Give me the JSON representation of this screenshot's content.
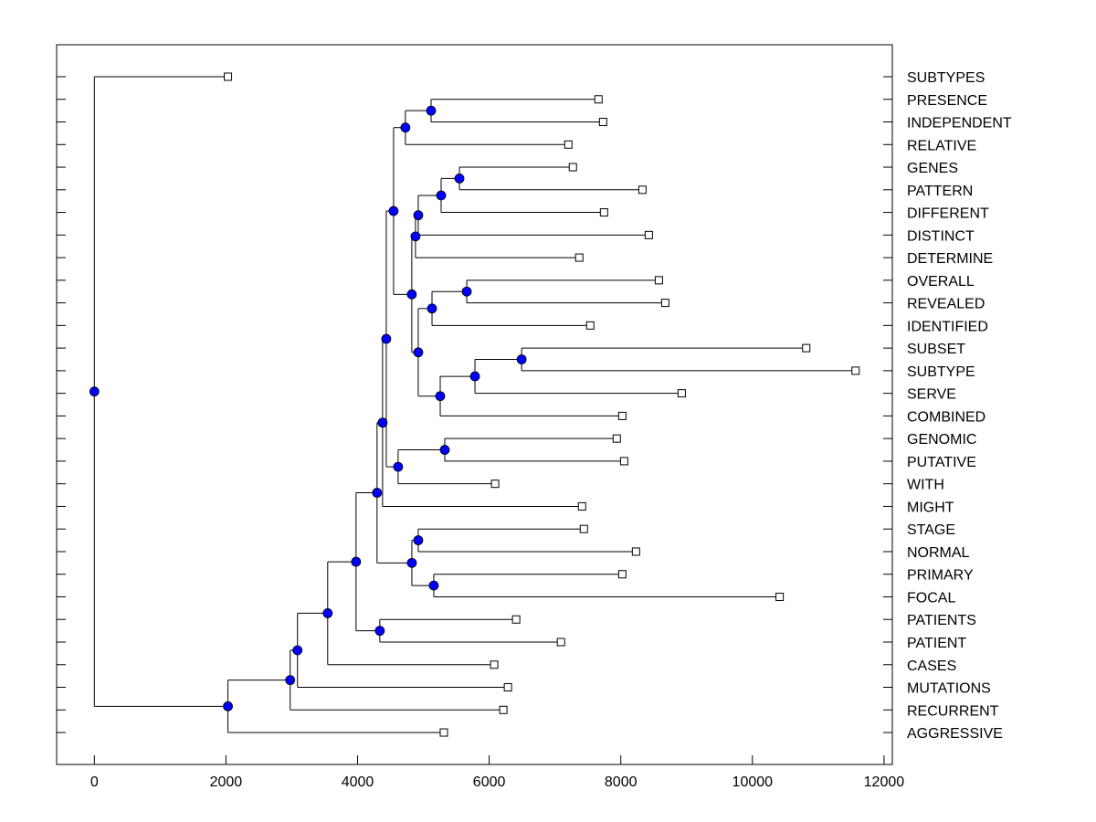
{
  "chart_data": {
    "type": "dendrogram",
    "title": "",
    "xlabel": "",
    "ylabel": "",
    "xlim": [
      -600,
      12100
    ],
    "xticks": [
      0,
      2000,
      4000,
      6000,
      8000,
      10000,
      12000
    ],
    "grid": false,
    "colors": {
      "internal_node": "#0000ff",
      "leaf_node": "#ffffff",
      "line": "#000000"
    },
    "leaf_order": [
      "SUBTYPES",
      "PRESENCE",
      "INDEPENDENT",
      "RELATIVE",
      "GENES",
      "PATTERN",
      "DIFFERENT",
      "DISTINCT",
      "DETERMINE",
      "OVERALL",
      "REVEALED",
      "IDENTIFIED",
      "SUBSET",
      "SUBTYPE",
      "SERVE",
      "COMBINED",
      "GENOMIC",
      "PUTATIVE",
      "WITH",
      "MIGHT",
      "STAGE",
      "NORMAL",
      "PRIMARY",
      "FOCAL",
      "PATIENTS",
      "PATIENT",
      "CASES",
      "MUTATIONS",
      "RECURRENT",
      "AGGRESSIVE"
    ],
    "tree": {
      "h": 0,
      "c": [
        {
          "label": "SUBTYPES",
          "h": 2030
        },
        {
          "h": 2030,
          "c": [
            {
              "h": 2976,
              "c": [
                {
                  "h": 3087,
                  "c": [
                    {
                      "h": 3546,
                      "c": [
                        {
                          "h": 3977,
                          "c": [
                            {
                              "h": 4296,
                              "c": [
                                {
                                  "h": 4380,
                                  "c": [
                                    {
                                      "h": 4436,
                                      "c": [
                                        {
                                          "h": 4547,
                                          "c": [
                                            {
                                              "h": 4727,
                                              "c": [
                                                {
                                                  "h": 5117,
                                                  "c": [
                                                    {
                                                      "label": "PRESENCE",
                                                      "h": 7661
                                                    },
                                                    {
                                                      "label": "INDEPENDENT",
                                                      "h": 7731
                                                    }
                                                  ]
                                                },
                                                {
                                                  "label": "RELATIVE",
                                                  "h": 7203
                                                }
                                              ]
                                            },
                                            {
                                              "h": 4824,
                                              "c": [
                                                {
                                                  "h": 4880,
                                                  "c": [
                                                    {
                                                      "h": 4922,
                                                      "c": [
                                                        {
                                                          "h": 5270,
                                                          "c": [
                                                            {
                                                              "h": 5548,
                                                              "c": [
                                                                {
                                                                  "label": "GENES",
                                                                  "h": 7272
                                                                },
                                                                {
                                                                  "label": "PATTERN",
                                                                  "h": 8329
                                                                }
                                                              ]
                                                            },
                                                            {
                                                              "label": "DIFFERENT",
                                                              "h": 7745
                                                            }
                                                          ]
                                                        },
                                                        {
                                                          "label": "DISTINCT",
                                                          "h": 8426
                                                        }
                                                      ]
                                                    },
                                                    {
                                                      "label": "DETERMINE",
                                                      "h": 7369
                                                    }
                                                  ]
                                                },
                                                {
                                                  "h": 4922,
                                                  "c": [
                                                    {
                                                      "h": 5131,
                                                      "c": [
                                                        {
                                                          "h": 5659,
                                                          "c": [
                                                            {
                                                              "label": "OVERALL",
                                                              "h": 8579
                                                            },
                                                            {
                                                              "label": "REVEALED",
                                                              "h": 8676
                                                            }
                                                          ]
                                                        },
                                                        {
                                                          "label": "IDENTIFIED",
                                                          "h": 7536
                                                        }
                                                      ]
                                                    },
                                                    {
                                                      "h": 5256,
                                                      "c": [
                                                        {
                                                          "h": 5784,
                                                          "c": [
                                                            {
                                                              "h": 6493,
                                                              "c": [
                                                                {
                                                                  "label": "SUBSET",
                                                                  "h": 10818
                                                                },
                                                                {
                                                                  "label": "SUBTYPE",
                                                                  "h": 11568
                                                                }
                                                              ]
                                                            },
                                                            {
                                                              "label": "SERVE",
                                                              "h": 8926
                                                            }
                                                          ]
                                                        },
                                                        {
                                                          "label": "COMBINED",
                                                          "h": 8023
                                                        }
                                                      ]
                                                    }
                                                  ]
                                                }
                                              ]
                                            }
                                          ]
                                        },
                                        {
                                          "h": 4616,
                                          "c": [
                                            {
                                              "h": 5325,
                                              "c": [
                                                {
                                                  "label": "GENOMIC",
                                                  "h": 7939
                                                },
                                                {
                                                  "label": "PUTATIVE",
                                                  "h": 8051
                                                }
                                              ]
                                            },
                                            {
                                              "label": "WITH",
                                              "h": 6090
                                            }
                                          ]
                                        }
                                      ]
                                    },
                                    {
                                      "label": "MIGHT",
                                      "h": 7411
                                    }
                                  ]
                                },
                                {
                                  "h": 4825,
                                  "c": [
                                    {
                                      "h": 4922,
                                      "c": [
                                        {
                                          "label": "STAGE",
                                          "h": 7439
                                        },
                                        {
                                          "label": "NORMAL",
                                          "h": 8231
                                        }
                                      ]
                                    },
                                    {
                                      "h": 5158,
                                      "c": [
                                        {
                                          "label": "PRIMARY",
                                          "h": 8023
                                        },
                                        {
                                          "label": "FOCAL",
                                          "h": 10414
                                        }
                                      ]
                                    }
                                  ]
                                }
                              ]
                            },
                            {
                              "h": 4338,
                              "c": [
                                {
                                  "label": "PATIENTS",
                                  "h": 6410
                                },
                                {
                                  "label": "PATIENT",
                                  "h": 7091
                                }
                              ]
                            }
                          ]
                        },
                        {
                          "label": "CASES",
                          "h": 6076
                        }
                      ]
                    },
                    {
                      "label": "MUTATIONS",
                      "h": 6285
                    }
                  ]
                },
                {
                  "label": "RECURRENT",
                  "h": 6215
                }
              ]
            },
            {
              "label": "AGGRESSIVE",
              "h": 5311
            }
          ]
        }
      ]
    }
  }
}
